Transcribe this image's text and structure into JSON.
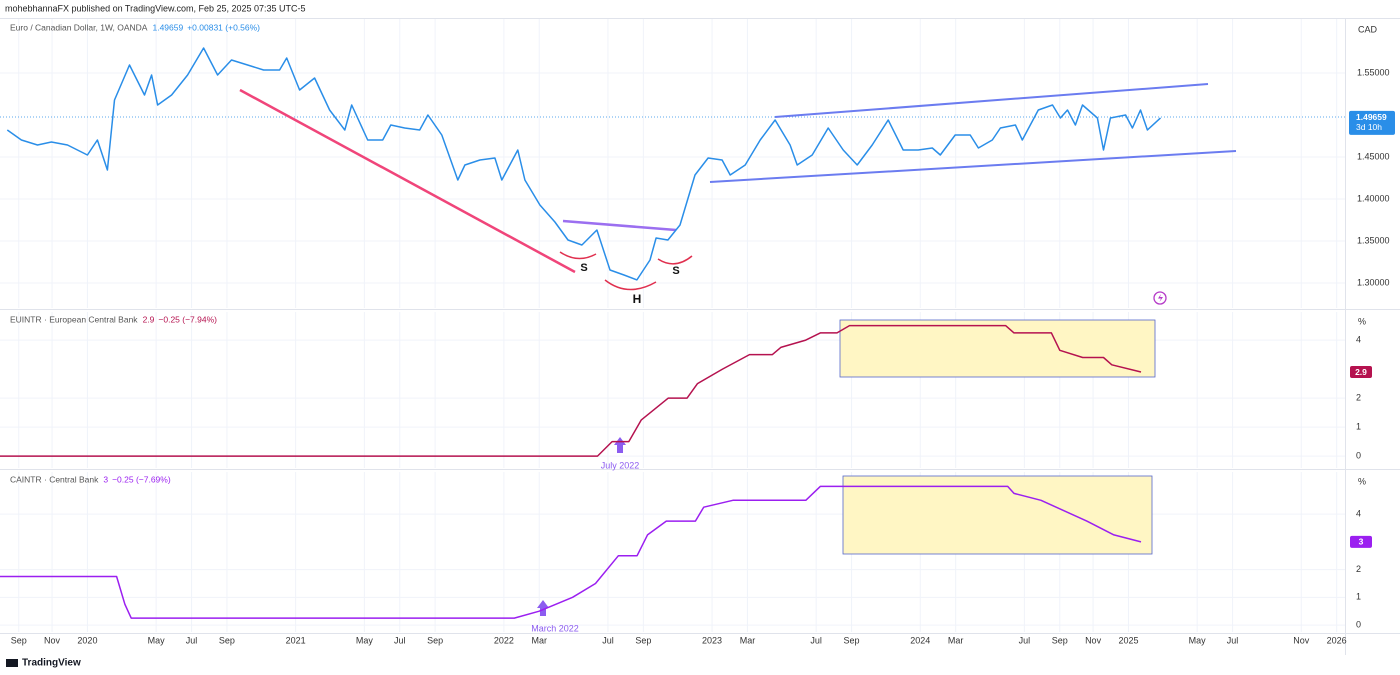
{
  "header": "mohebhannaFX published on TradingView.com, Feb 25, 2025 07:35 UTC-5",
  "footer": "TradingView",
  "chart_data": [
    {
      "type": "line",
      "title": "Euro / Canadian Dollar, 1W, OANDA",
      "last_value_label": "1.49659",
      "change_label": "+0.00831 (+0.56%)",
      "countdown_label": "3d 10h",
      "y_unit": "CAD",
      "color": "#2a8ee8",
      "xlim": [
        2019.58,
        2026.04
      ],
      "ylim": [
        1.2702,
        1.6155
      ],
      "yticks": [
        {
          "value": 1.3,
          "label": "1.30000"
        },
        {
          "value": 1.35,
          "label": "1.35000"
        },
        {
          "value": 1.4,
          "label": "1.40000"
        },
        {
          "value": 1.45,
          "label": "1.45000"
        },
        {
          "value": 1.55,
          "label": "1.55000"
        }
      ],
      "annotations": [
        "S",
        "H",
        "S"
      ],
      "x": [
        2019.615,
        2019.683,
        2019.76,
        2019.827,
        2019.904,
        2020.0,
        2020.048,
        2020.096,
        2020.13,
        2020.202,
        2020.274,
        2020.308,
        2020.337,
        2020.404,
        2020.481,
        2020.558,
        2020.625,
        2020.692,
        2020.769,
        2020.846,
        2020.923,
        2020.957,
        2021.019,
        2021.091,
        2021.163,
        2021.236,
        2021.269,
        2021.346,
        2021.418,
        2021.457,
        2021.524,
        2021.596,
        2021.635,
        2021.702,
        2021.779,
        2021.813,
        2021.885,
        2021.957,
        2021.99,
        2022.067,
        2022.101,
        2022.173,
        2022.245,
        2022.308,
        2022.375,
        2022.447,
        2022.51,
        2022.577,
        2022.639,
        2022.702,
        2022.731,
        2022.788,
        2022.846,
        2022.918,
        2022.981,
        2023.048,
        2023.087,
        2023.159,
        2023.231,
        2023.303,
        2023.375,
        2023.409,
        2023.481,
        2023.558,
        2023.63,
        2023.697,
        2023.769,
        2023.846,
        2023.918,
        2023.99,
        2024.058,
        2024.096,
        2024.168,
        2024.24,
        2024.279,
        2024.346,
        2024.385,
        2024.457,
        2024.49,
        2024.567,
        2024.635,
        2024.673,
        2024.707,
        2024.745,
        2024.779,
        2024.851,
        2024.88,
        2024.913,
        2024.986,
        2025.019,
        2025.058,
        2025.091,
        2025.154
      ],
      "values": [
        1.4821,
        1.4702,
        1.4643,
        1.4679,
        1.4643,
        1.4524,
        1.4702,
        1.4345,
        1.5179,
        1.5595,
        1.5238,
        1.5476,
        1.5119,
        1.5238,
        1.5476,
        1.5798,
        1.5476,
        1.5655,
        1.5595,
        1.5536,
        1.5536,
        1.5679,
        1.5298,
        1.544,
        1.506,
        1.4821,
        1.5119,
        1.4702,
        1.4702,
        1.4881,
        1.4845,
        1.4821,
        1.5,
        1.4762,
        1.4226,
        1.4405,
        1.4464,
        1.4488,
        1.4226,
        1.4583,
        1.4226,
        1.3929,
        1.3726,
        1.3512,
        1.3452,
        1.3631,
        1.3155,
        1.3095,
        1.3036,
        1.3274,
        1.3536,
        1.3512,
        1.369,
        1.4286,
        1.4488,
        1.4464,
        1.4286,
        1.4405,
        1.4702,
        1.494,
        1.4643,
        1.4405,
        1.4524,
        1.4845,
        1.4583,
        1.4405,
        1.4643,
        1.494,
        1.4583,
        1.4583,
        1.4607,
        1.4524,
        1.4762,
        1.4762,
        1.4607,
        1.4702,
        1.4845,
        1.4881,
        1.4702,
        1.506,
        1.5119,
        1.4964,
        1.506,
        1.4881,
        1.5119,
        1.4964,
        1.4583,
        1.4964,
        1.5,
        1.4845,
        1.506,
        1.4821,
        1.49659
      ]
    },
    {
      "type": "line",
      "title": "EUINTR · European Central Bank",
      "last_value_label": "2.9",
      "change_label": "−0.25 (−7.94%)",
      "y_unit": "%",
      "color": "#b5124f",
      "xlim": [
        2019.58,
        2026.04
      ],
      "ylim": [
        -0.41,
        4.97
      ],
      "yticks": [
        0,
        1,
        2,
        4
      ],
      "annotations": [
        "July 2022"
      ],
      "x": [
        2019.58,
        2022.45,
        2022.52,
        2022.6,
        2022.66,
        2022.79,
        2022.88,
        2022.93,
        2023.05,
        2023.18,
        2023.29,
        2023.33,
        2023.45,
        2023.52,
        2023.6,
        2023.66,
        2024.41,
        2024.45,
        2024.63,
        2024.67,
        2024.78,
        2024.88,
        2024.92,
        2025.06
      ],
      "values": [
        0,
        0,
        0.5,
        0.5,
        1.25,
        2.0,
        2.0,
        2.5,
        3.0,
        3.5,
        3.5,
        3.75,
        4.0,
        4.25,
        4.25,
        4.5,
        4.5,
        4.25,
        4.25,
        3.65,
        3.4,
        3.4,
        3.15,
        2.9
      ]
    },
    {
      "type": "line",
      "title": "CAINTR · Central Bank",
      "last_value_label": "3",
      "change_label": "−0.25 (−7.69%)",
      "y_unit": "%",
      "color": "#9b1ff0",
      "xlim": [
        2019.58,
        2026.04
      ],
      "ylim": [
        -0.25,
        5.52
      ],
      "yticks": [
        0,
        1,
        2,
        4
      ],
      "annotations": [
        "March 2022"
      ],
      "x": [
        2019.58,
        2020.14,
        2020.18,
        2020.21,
        2022.05,
        2022.17,
        2022.33,
        2022.44,
        2022.55,
        2022.64,
        2022.69,
        2022.78,
        2022.83,
        2022.92,
        2022.96,
        2023.1,
        2023.45,
        2023.52,
        2024.42,
        2024.45,
        2024.58,
        2024.8,
        2024.93,
        2025.06
      ],
      "values": [
        1.75,
        1.75,
        0.75,
        0.25,
        0.25,
        0.5,
        1.0,
        1.5,
        2.5,
        2.5,
        3.25,
        3.75,
        3.75,
        3.75,
        4.25,
        4.5,
        4.5,
        5.0,
        5.0,
        4.75,
        4.5,
        3.75,
        3.25,
        3.0
      ],
      "xticks": [
        {
          "value": 2019.67,
          "label": "Sep"
        },
        {
          "value": 2019.83,
          "label": "Nov"
        },
        {
          "value": 2020.0,
          "label": "2020"
        },
        {
          "value": 2020.33,
          "label": "May"
        },
        {
          "value": 2020.5,
          "label": "Jul"
        },
        {
          "value": 2020.67,
          "label": "Sep"
        },
        {
          "value": 2021.0,
          "label": "2021"
        },
        {
          "value": 2021.33,
          "label": "May"
        },
        {
          "value": 2021.5,
          "label": "Jul"
        },
        {
          "value": 2021.67,
          "label": "Sep"
        },
        {
          "value": 2022.0,
          "label": "2022"
        },
        {
          "value": 2022.17,
          "label": "Mar"
        },
        {
          "value": 2022.5,
          "label": "Jul"
        },
        {
          "value": 2022.67,
          "label": "Sep"
        },
        {
          "value": 2023.0,
          "label": "2023"
        },
        {
          "value": 2023.17,
          "label": "Mar"
        },
        {
          "value": 2023.5,
          "label": "Jul"
        },
        {
          "value": 2023.67,
          "label": "Sep"
        },
        {
          "value": 2024.0,
          "label": "2024"
        },
        {
          "value": 2024.17,
          "label": "Mar"
        },
        {
          "value": 2024.5,
          "label": "Jul"
        },
        {
          "value": 2024.67,
          "label": "Sep"
        },
        {
          "value": 2024.83,
          "label": "Nov"
        },
        {
          "value": 2025.0,
          "label": "2025"
        },
        {
          "value": 2025.33,
          "label": "May"
        },
        {
          "value": 2025.5,
          "label": "Jul"
        },
        {
          "value": 2025.83,
          "label": "Nov"
        },
        {
          "value": 2026.0,
          "label": "2026"
        }
      ]
    }
  ]
}
